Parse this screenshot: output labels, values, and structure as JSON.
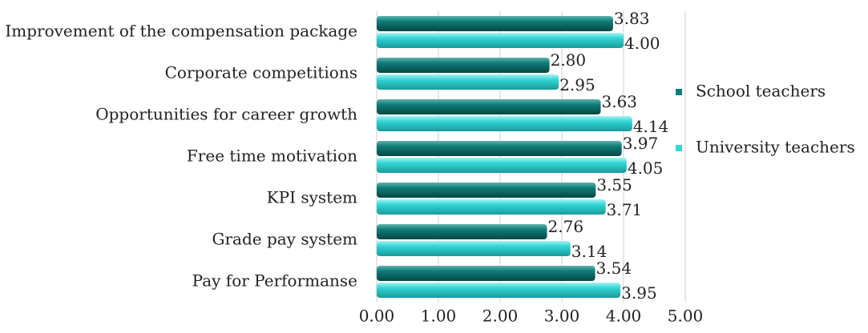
{
  "chart_data": {
    "type": "bar",
    "orientation": "horizontal",
    "categories": [
      "Improvement of the compensation package",
      "Corporate competitions",
      "Opportunities for career growth",
      "Free time motivation",
      "KPI system",
      "Grade pay system",
      "Pay for Performanse"
    ],
    "series": [
      {
        "name": "School teachers",
        "color": "#0f7c78",
        "values": [
          3.83,
          2.8,
          3.63,
          3.97,
          3.55,
          2.76,
          3.54
        ],
        "value_labels": [
          "3.83",
          "2.80",
          "3.63",
          "3.97",
          "3.55",
          "2.76",
          "3.54"
        ]
      },
      {
        "name": "University teachers",
        "color": "#33d5d5",
        "values": [
          4.0,
          2.95,
          4.14,
          4.05,
          3.71,
          3.14,
          3.95
        ],
        "value_labels": [
          "4.00",
          "2.95",
          "4.14",
          "4.05",
          "3.71",
          "3.14",
          "3.95"
        ]
      }
    ],
    "xlim": [
      0,
      5
    ],
    "xticks": [
      {
        "value": 0,
        "label": "0.00"
      },
      {
        "value": 1,
        "label": "1.00"
      },
      {
        "value": 2,
        "label": "2.00"
      },
      {
        "value": 3,
        "label": "3.00"
      },
      {
        "value": 4,
        "label": "4.00"
      },
      {
        "value": 5,
        "label": "5.00"
      }
    ],
    "grid": true,
    "legend": "right"
  }
}
